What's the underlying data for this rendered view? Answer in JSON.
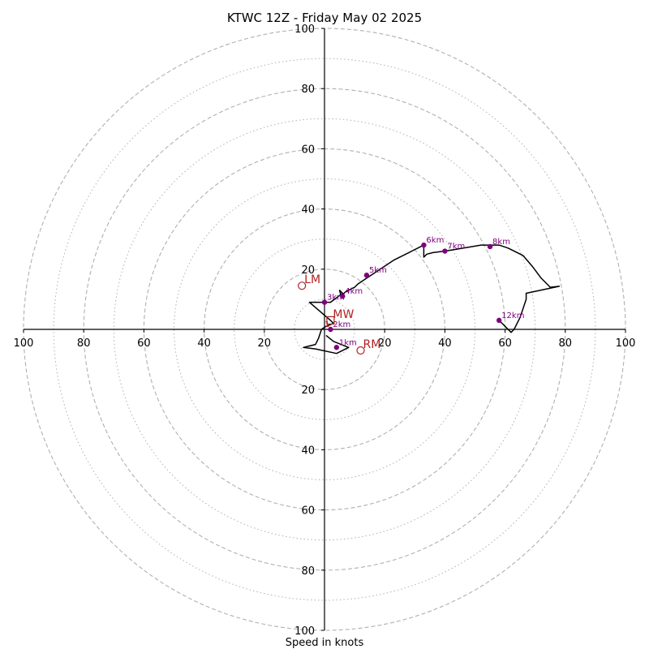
{
  "chart_data": {
    "type": "hodograph",
    "title": "KTWC 12Z - Friday May 02 2025",
    "xlabel": "Speed in knots",
    "xlim": [
      -100,
      100
    ],
    "ylim": [
      -100,
      100
    ],
    "grid": true,
    "major_rings": [
      20,
      40,
      60,
      80,
      100
    ],
    "minor_rings": [
      10,
      30,
      50,
      70,
      90
    ],
    "x_ticks": [
      {
        "value": -100,
        "label": "100"
      },
      {
        "value": -80,
        "label": "80"
      },
      {
        "value": -60,
        "label": "60"
      },
      {
        "value": -40,
        "label": "40"
      },
      {
        "value": -20,
        "label": "20"
      },
      {
        "value": 20,
        "label": "20"
      },
      {
        "value": 40,
        "label": "40"
      },
      {
        "value": 60,
        "label": "60"
      },
      {
        "value": 80,
        "label": "80"
      },
      {
        "value": 100,
        "label": "100"
      }
    ],
    "y_ticks": [
      {
        "value": 100,
        "label": "100"
      },
      {
        "value": 80,
        "label": "80"
      },
      {
        "value": 60,
        "label": "60"
      },
      {
        "value": 40,
        "label": "40"
      },
      {
        "value": 20,
        "label": "20"
      },
      {
        "value": -20,
        "label": "20"
      },
      {
        "value": -40,
        "label": "40"
      },
      {
        "value": -60,
        "label": "60"
      },
      {
        "value": -80,
        "label": "80"
      },
      {
        "value": -100,
        "label": "100"
      }
    ],
    "colors": {
      "hodograph_line": "#000000",
      "level_marker": "#800080",
      "storm_motion": "#b22222",
      "axis": "#000000",
      "grid": "#b0b0b0"
    },
    "hodograph": {
      "u": [
        0.5,
        3,
        8,
        4,
        -3,
        -7,
        -3,
        -2,
        -1,
        0.5,
        3,
        2,
        -5,
        -4.5,
        0,
        2,
        6,
        5,
        5.5,
        7,
        8,
        10,
        11,
        14,
        17,
        23,
        28,
        33,
        33,
        34,
        36,
        40,
        43,
        52,
        55,
        58,
        61,
        66,
        69,
        72,
        75,
        78,
        67,
        67,
        66,
        65,
        63,
        62,
        60,
        58
      ],
      "v": [
        -2,
        -4,
        -6,
        -8,
        -6.5,
        -6,
        -5,
        -3,
        0,
        1,
        2,
        3,
        9,
        9,
        9,
        9,
        12,
        13,
        11,
        12.5,
        13,
        14,
        15,
        17,
        19,
        23,
        25.5,
        28,
        24,
        25,
        25.5,
        26,
        26.5,
        28,
        28,
        28,
        27,
        24.5,
        21,
        17,
        14,
        14.3,
        12,
        10,
        7,
        4,
        0,
        -1,
        1,
        3
      ]
    },
    "levels": [
      {
        "label": "1km",
        "u": 4,
        "v": -6
      },
      {
        "label": "2km",
        "u": 2,
        "v": 0
      },
      {
        "label": "3km",
        "u": 0,
        "v": 9
      },
      {
        "label": "4km",
        "u": 6,
        "v": 11
      },
      {
        "label": "5km",
        "u": 14,
        "v": 18
      },
      {
        "label": "6km",
        "u": 33,
        "v": 28
      },
      {
        "label": "7km",
        "u": 40,
        "v": 26
      },
      {
        "label": "8km",
        "u": 55,
        "v": 27.5
      },
      {
        "label": "12km",
        "u": 58,
        "v": 3
      }
    ],
    "storm_motion": [
      {
        "label": "LM",
        "u": -7.5,
        "v": 14.5,
        "marker": "circle"
      },
      {
        "label": "MW",
        "u": 2,
        "v": 3,
        "marker": "square"
      },
      {
        "label": "RM",
        "u": 12,
        "v": -7,
        "marker": "circle"
      }
    ],
    "extra_markers": [
      {
        "label": "1",
        "u": -0.5,
        "v": 0.5
      }
    ]
  }
}
